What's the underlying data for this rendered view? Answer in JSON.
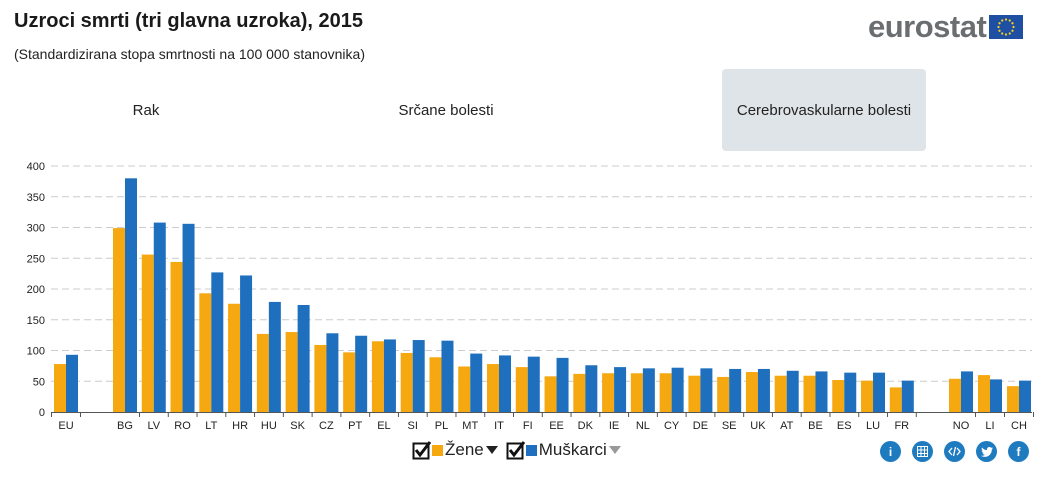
{
  "header": {
    "title": "Uzroci smrti (tri glavna uzroka), 2015",
    "subtitle": "(Standardizirana stopa smrtnosti na 100 000 stanovnika)",
    "logo_text": "eurostat"
  },
  "tabs": [
    {
      "label": "Rak",
      "active": false
    },
    {
      "label": "Srčane bolesti",
      "active": false
    },
    {
      "label": "Cerebrovaskularne bolesti",
      "active": true
    }
  ],
  "legend": {
    "women_label": "Žene",
    "men_label": "Muškarci"
  },
  "colors": {
    "women": "#f5a80f",
    "men": "#1f6fbf",
    "grid": "#cccccc",
    "active_tab": "#dfe4e8",
    "icon": "#1f7bc0"
  },
  "share_icons": [
    "info-icon",
    "table-icon",
    "embed-icon",
    "twitter-icon",
    "facebook-icon"
  ],
  "chart_data": {
    "type": "bar",
    "title": "Uzroci smrti (tri glavna uzroka), 2015",
    "subtitle": "(Standardizirana stopa smrtnosti na 100 000 stanovnika)",
    "categories": [
      "EU",
      "BG",
      "LV",
      "RO",
      "LT",
      "HR",
      "HU",
      "SK",
      "CZ",
      "PT",
      "EL",
      "SI",
      "PL",
      "MT",
      "IT",
      "FI",
      "EE",
      "DK",
      "IE",
      "NL",
      "CY",
      "DE",
      "SE",
      "UK",
      "AT",
      "BE",
      "ES",
      "LU",
      "FR",
      "NO",
      "LI",
      "CH"
    ],
    "series": [
      {
        "name": "Žene",
        "values": [
          78,
          299,
          256,
          244,
          193,
          176,
          127,
          130,
          109,
          97,
          115,
          96,
          89,
          74,
          78,
          73,
          58,
          62,
          63,
          63,
          63,
          59,
          57,
          65,
          59,
          59,
          52,
          51,
          40,
          54,
          60,
          42
        ]
      },
      {
        "name": "Muškarci",
        "values": [
          93,
          380,
          308,
          306,
          227,
          222,
          179,
          174,
          128,
          124,
          118,
          117,
          116,
          95,
          92,
          90,
          88,
          76,
          73,
          71,
          72,
          71,
          70,
          70,
          67,
          66,
          64,
          64,
          51,
          66,
          53,
          51
        ]
      }
    ],
    "y_ticks": [
      0,
      50,
      100,
      150,
      200,
      250,
      300,
      350,
      400
    ],
    "ylim": [
      0,
      400
    ],
    "grid": true,
    "legend_position": "bottom-center"
  }
}
